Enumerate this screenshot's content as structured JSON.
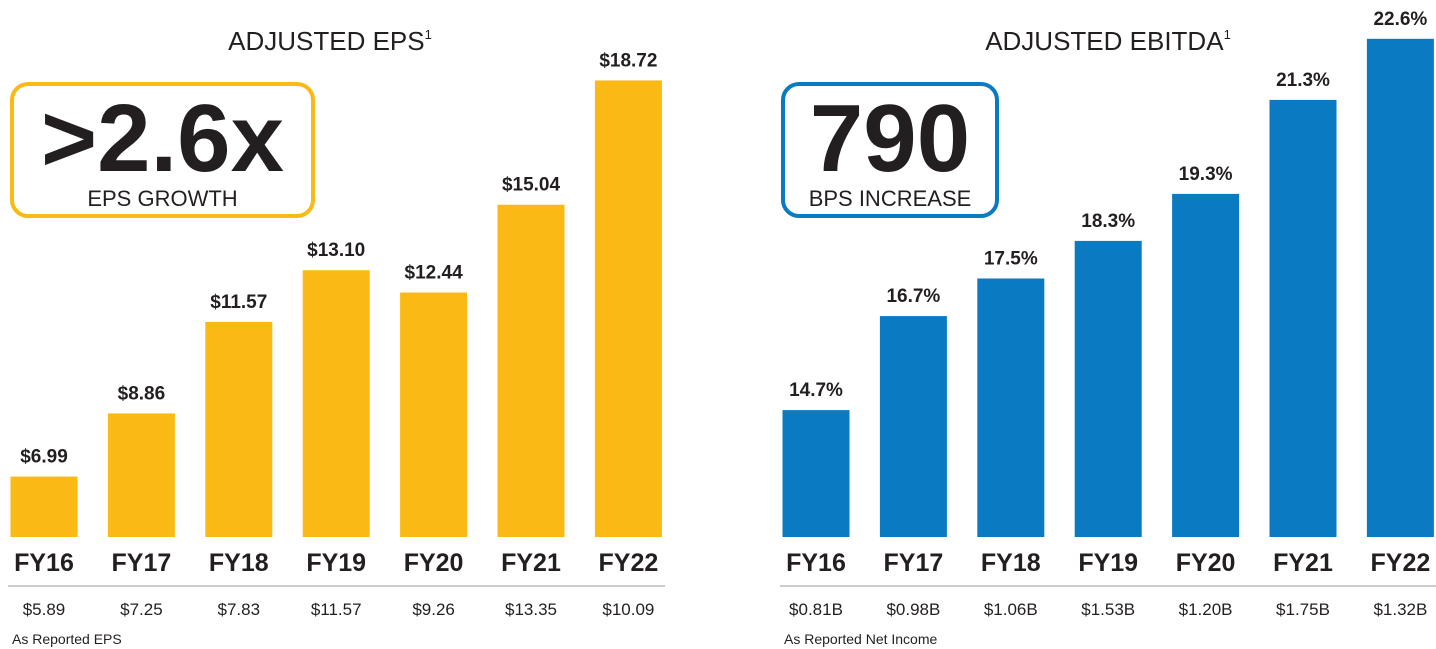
{
  "chart_data": [
    {
      "type": "bar",
      "title": "ADJUSTED EPS",
      "title_note": "1",
      "callout": ">2.6x",
      "callout_text": "EPS GROWTH",
      "categories": [
        "FY16",
        "FY17",
        "FY18",
        "FY19",
        "FY20",
        "FY21",
        "FY22"
      ],
      "values": [
        6.99,
        8.86,
        11.57,
        13.1,
        12.44,
        15.04,
        18.72
      ],
      "value_labels": [
        "$6.99",
        "$8.86",
        "$11.57",
        "$13.10",
        "$12.44",
        "$15.04",
        "$18.72"
      ],
      "reported": [
        "$5.89",
        "$7.25",
        "$7.83",
        "$11.57",
        "$9.26",
        "$13.35",
        "$10.09"
      ],
      "footnote": "As Reported EPS",
      "color": "#fbb915",
      "ylim": [
        5.2,
        19.0
      ]
    },
    {
      "type": "bar",
      "title": "ADJUSTED EBITDA",
      "title_note": "1",
      "callout": "790",
      "callout_text": "BPS INCREASE",
      "categories": [
        "FY16",
        "FY17",
        "FY18",
        "FY19",
        "FY20",
        "FY21",
        "FY22"
      ],
      "values": [
        14.7,
        16.7,
        17.5,
        18.3,
        19.3,
        21.3,
        22.6
      ],
      "value_labels": [
        "14.7%",
        "16.7%",
        "17.5%",
        "18.3%",
        "19.3%",
        "21.3%",
        "22.6%"
      ],
      "reported": [
        "$0.81B",
        "$0.98B",
        "$1.06B",
        "$1.53B",
        "$1.20B",
        "$1.75B",
        "$1.32B"
      ],
      "footnote": "As Reported Net Income",
      "color": "#0a7bc2",
      "ylim": [
        12,
        23
      ]
    }
  ]
}
